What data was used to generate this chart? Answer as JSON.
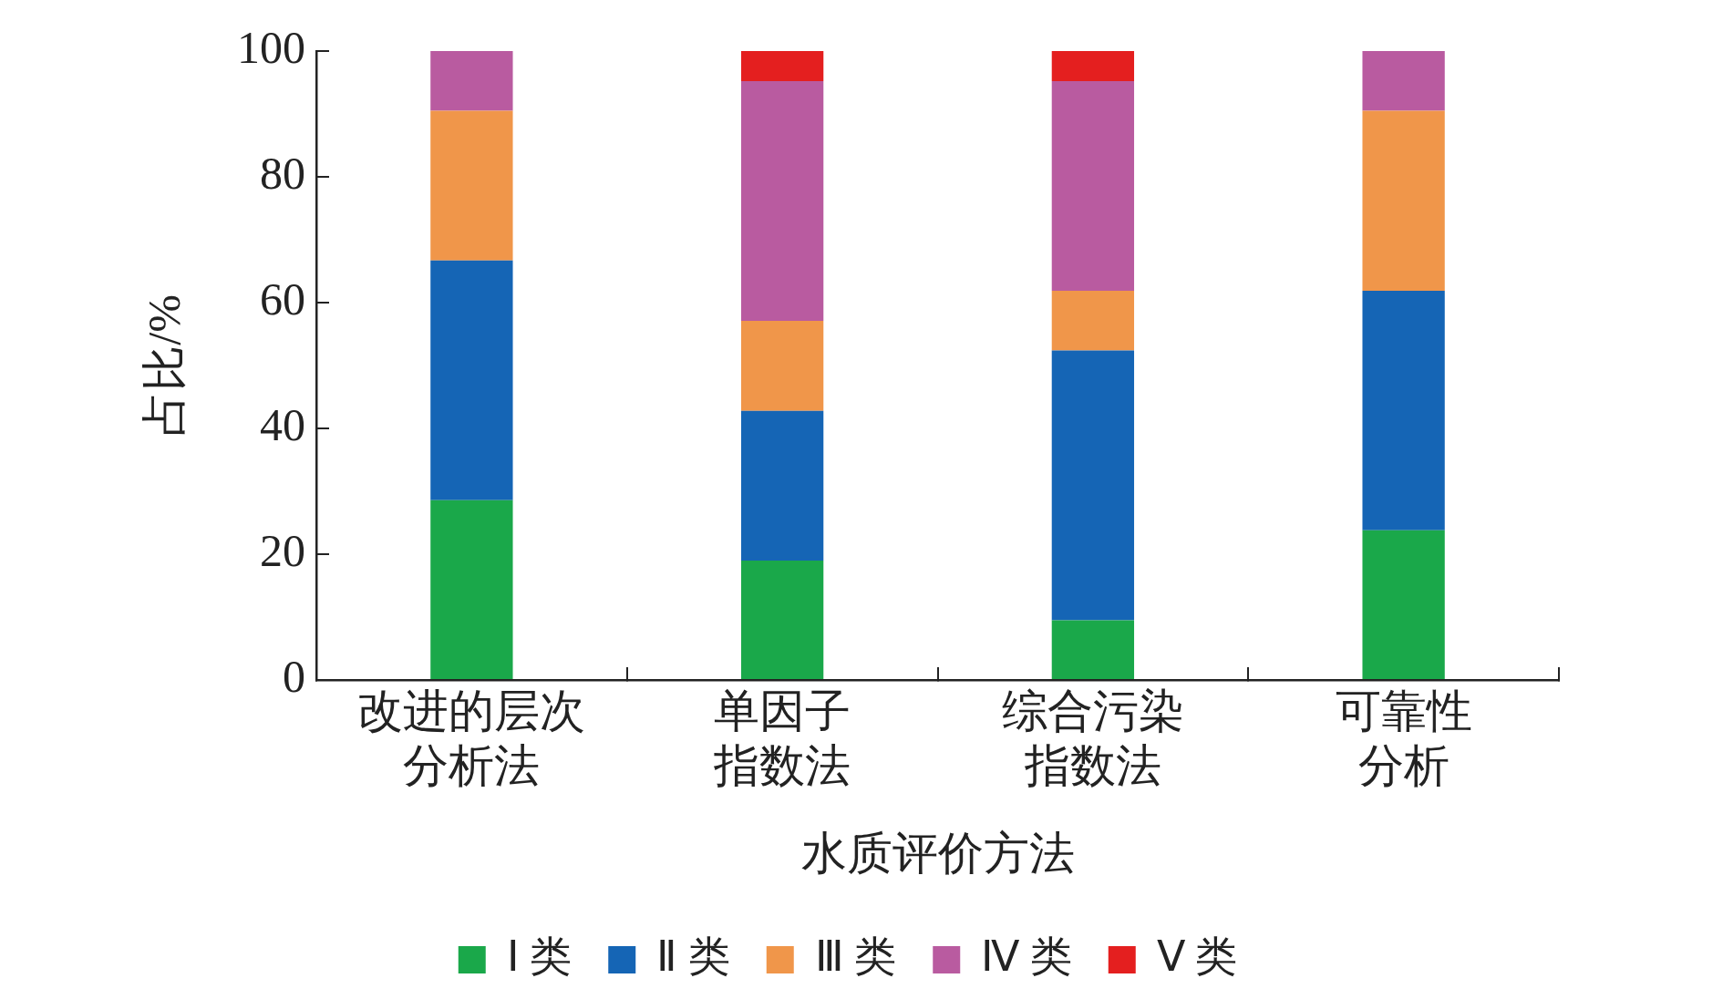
{
  "chart_data": {
    "type": "bar",
    "stacked": true,
    "xlabel": "水质评价方法",
    "ylabel": "占比/%",
    "categories": [
      "改进的层次分析法",
      "单因子指数法",
      "综合污染指数法",
      "可靠性分析"
    ],
    "series": [
      {
        "name": "Ⅰ 类",
        "color": "#1aa84a",
        "values": [
          28.6,
          19.0,
          9.5,
          23.8
        ]
      },
      {
        "name": "Ⅱ 类",
        "color": "#1565b5",
        "values": [
          38.1,
          23.8,
          42.9,
          38.1
        ]
      },
      {
        "name": "Ⅲ 类",
        "color": "#f0964a",
        "values": [
          23.8,
          14.3,
          9.5,
          28.6
        ]
      },
      {
        "name": "Ⅳ 类",
        "color": "#b95ba0",
        "values": [
          9.5,
          38.1,
          33.3,
          9.5
        ]
      },
      {
        "name": "Ⅴ 类",
        "color": "#e41f1f",
        "values": [
          0,
          4.8,
          4.8,
          0
        ]
      }
    ],
    "ylim": [
      0,
      100
    ],
    "yticks": [
      0,
      20,
      40,
      60,
      80,
      100
    ],
    "grid": false,
    "legend": "bottom"
  }
}
